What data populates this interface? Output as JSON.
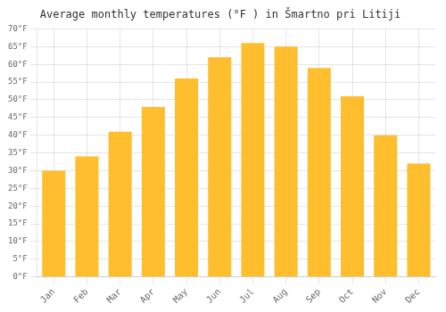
{
  "chart_data": {
    "type": "bar",
    "title": "Average monthly temperatures (°F ) in Šmartno pri Litiji",
    "categories": [
      "Jan",
      "Feb",
      "Mar",
      "Apr",
      "May",
      "Jun",
      "Jul",
      "Aug",
      "Sep",
      "Oct",
      "Nov",
      "Dec"
    ],
    "values": [
      30,
      34,
      41,
      48,
      56,
      62,
      66,
      65,
      59,
      51,
      40,
      32
    ],
    "color": "#FFBE2D",
    "ylim": [
      0,
      70
    ],
    "yticks": [
      {
        "value": 0,
        "label": "0°F"
      },
      {
        "value": 5,
        "label": "5°F"
      },
      {
        "value": 10,
        "label": "10°F"
      },
      {
        "value": 15,
        "label": "15°F"
      },
      {
        "value": 20,
        "label": "20°F"
      },
      {
        "value": 25,
        "label": "25°F"
      },
      {
        "value": 30,
        "label": "30°F"
      },
      {
        "value": 35,
        "label": "35°F"
      },
      {
        "value": 40,
        "label": "40°F"
      },
      {
        "value": 45,
        "label": "45°F"
      },
      {
        "value": 50,
        "label": "50°F"
      },
      {
        "value": 55,
        "label": "55°F"
      },
      {
        "value": 60,
        "label": "60°F"
      },
      {
        "value": 65,
        "label": "65°F"
      },
      {
        "value": 70,
        "label": "70°F"
      }
    ],
    "grid": true
  }
}
